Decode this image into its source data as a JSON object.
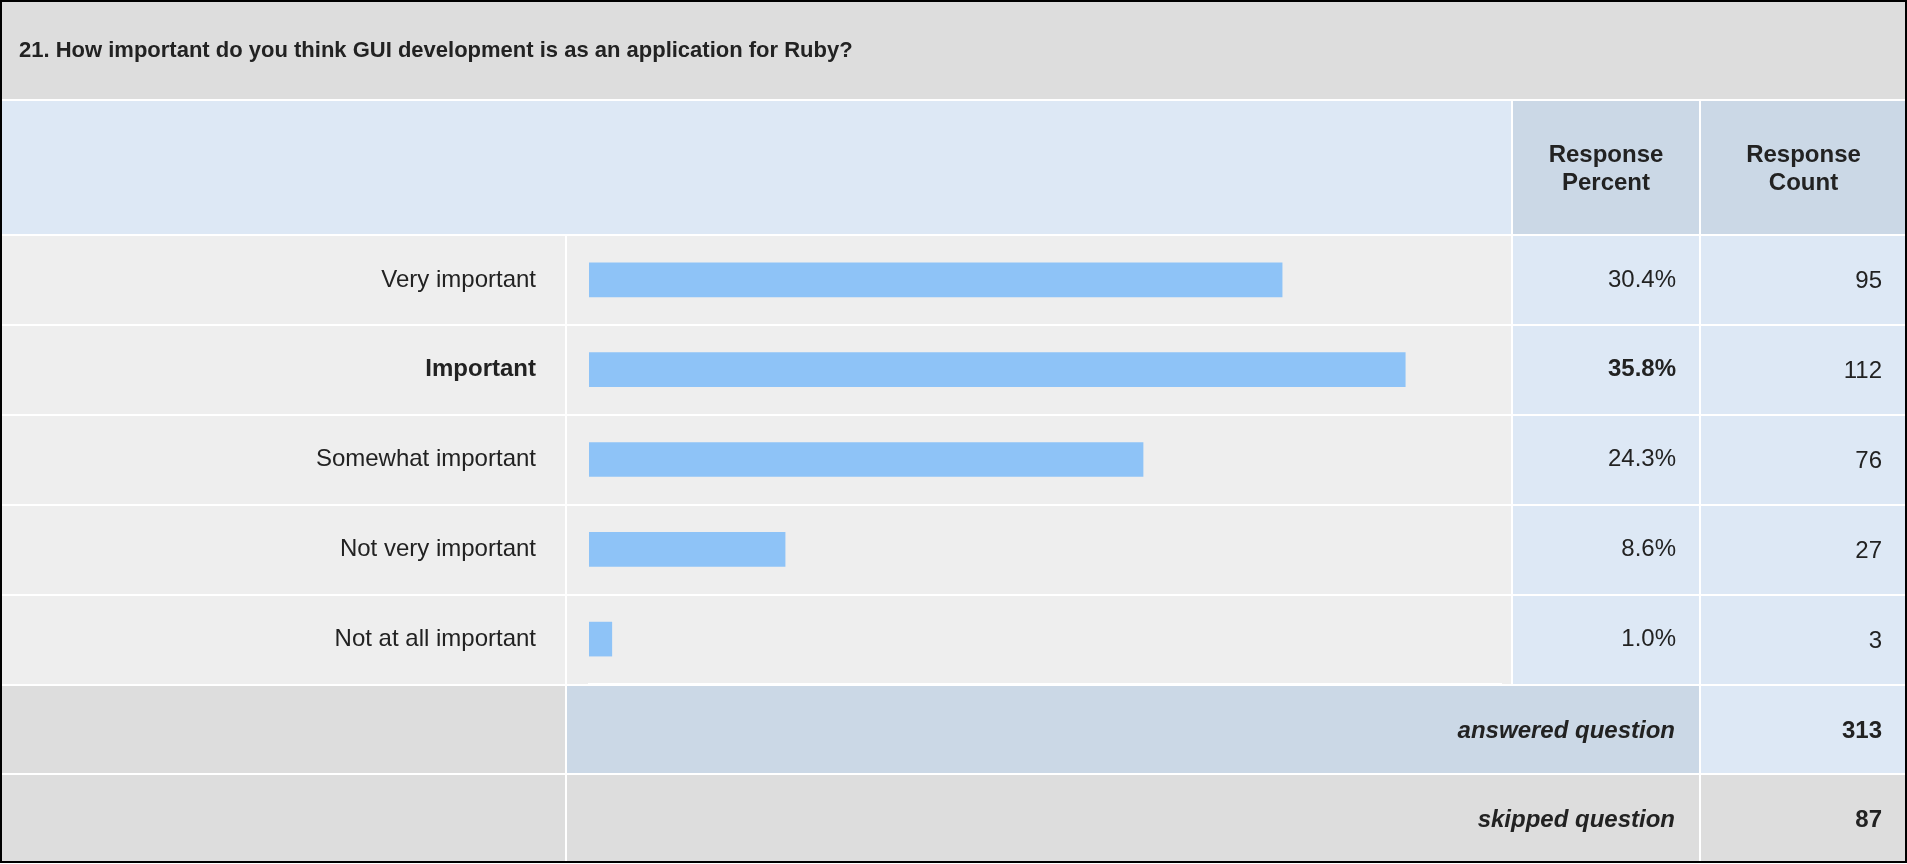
{
  "chart_data": {
    "type": "bar",
    "orientation": "horizontal",
    "title": "21. How important do you think GUI development is as an application for Ruby?",
    "categories": [
      "Very important",
      "Important",
      "Somewhat important",
      "Not very important",
      "Not at all important"
    ],
    "values": [
      30.4,
      35.8,
      24.3,
      8.6,
      1.0
    ],
    "value_labels": [
      "30.4%",
      "35.8%",
      "24.3%",
      "8.6%",
      "1.0%"
    ],
    "color": "#8ec3f7",
    "tick_labels": "y",
    "annotations": [
      "Response Percent",
      "Response Count",
      "95",
      "112",
      "76",
      "27",
      "3",
      "answered question",
      "313",
      "skipped question",
      "87"
    ]
  }
}
